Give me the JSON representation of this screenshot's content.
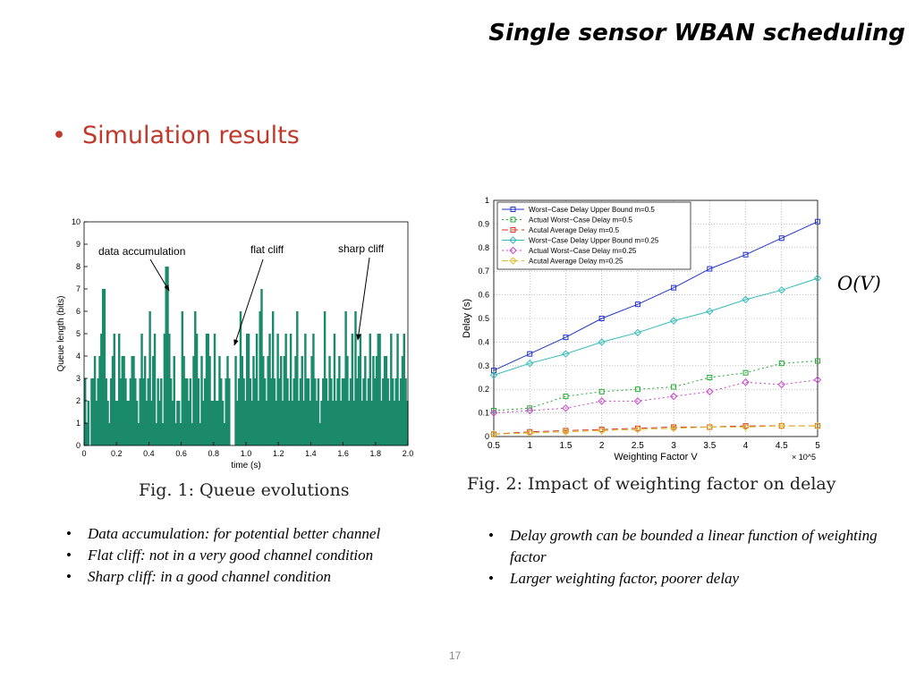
{
  "slide": {
    "title": "Single sensor WBAN scheduling",
    "bullet": "Simulation results",
    "page_number": "17",
    "ov_label": "O(V)",
    "notes_left": [
      "Data accumulation: for potential better channel",
      "Flat cliff: not in a very good channel condition",
      "Sharp cliff: in a good channel condition"
    ],
    "notes_right": [
      "Delay growth can be bounded a linear function of weighting factor",
      "Larger weighting factor, poorer delay"
    ],
    "bullet_color": "#c0392b"
  },
  "chart_data": [
    {
      "type": "bar",
      "caption": "Fig. 1: Queue evolutions",
      "xlabel": "time (s)",
      "ylabel": "Queue length (bits)",
      "xlim": [
        0,
        2.0
      ],
      "ylim": [
        0,
        10
      ],
      "xticks": [
        "0",
        "0.2",
        "0.4",
        "0.6",
        "0.8",
        "1.0",
        "1.2",
        "1.4",
        "1.6",
        "1.8",
        "2.0"
      ],
      "yticks": [
        "0",
        "1",
        "2",
        "3",
        "4",
        "5",
        "6",
        "7",
        "8",
        "9",
        "10"
      ],
      "color": "#1a8a6a",
      "annotations": [
        "data accumulation",
        "flat cliff",
        "sharp cliff"
      ],
      "bar_width": 0.01,
      "values": [
        3,
        1,
        2,
        0,
        3,
        3,
        4,
        2,
        3,
        4,
        5,
        7,
        7,
        3,
        2,
        1,
        3,
        4,
        5,
        2,
        2,
        5,
        3,
        4,
        4,
        3,
        2,
        2,
        3,
        4,
        4,
        3,
        2,
        1,
        3,
        5,
        3,
        4,
        2,
        3,
        6,
        2,
        4,
        5,
        1,
        3,
        2,
        3,
        1,
        5,
        8,
        8,
        5,
        3,
        2,
        4,
        1,
        2,
        2,
        1,
        6,
        4,
        3,
        3,
        2,
        3,
        1,
        4,
        6,
        5,
        3,
        1,
        4,
        2,
        3,
        5,
        5,
        4,
        2,
        2,
        5,
        2,
        2,
        4,
        3,
        2,
        1,
        3,
        4,
        3,
        0,
        0,
        0,
        4,
        2,
        3,
        6,
        4,
        3,
        2,
        5,
        5,
        3,
        2,
        4,
        3,
        5,
        2,
        6,
        7,
        4,
        3,
        2,
        4,
        5,
        3,
        6,
        3,
        2,
        5,
        3,
        4,
        2,
        4,
        5,
        3,
        2,
        5,
        2,
        3,
        4,
        6,
        2,
        3,
        4,
        2,
        5,
        3,
        3,
        2,
        4,
        5,
        3,
        2,
        3,
        1,
        2,
        3,
        6,
        3,
        2,
        4,
        3,
        2,
        5,
        2,
        3,
        4,
        2,
        3,
        3,
        6,
        4,
        2,
        3,
        5,
        2,
        6,
        3,
        4,
        5,
        2,
        3,
        4,
        2,
        3,
        5,
        2,
        4,
        3,
        4,
        5,
        5,
        2,
        3,
        4,
        4,
        3,
        2,
        5,
        3,
        2,
        3,
        5,
        2,
        3,
        4,
        5,
        3,
        2
      ]
    },
    {
      "type": "line",
      "caption": "Fig. 2: Impact of weighting factor on delay",
      "xlabel": "Weighting Factor V",
      "ylabel": "Delay (s)",
      "x_multiplier": "× 10^5",
      "xlim": [
        0.5,
        5
      ],
      "ylim": [
        0,
        1
      ],
      "grid": true,
      "legend_position": "top-left",
      "x": [
        0.5,
        1,
        1.5,
        2,
        2.5,
        3,
        3.5,
        4,
        4.5,
        5
      ],
      "xticks": [
        "0.5",
        "1",
        "1.5",
        "2",
        "2.5",
        "3",
        "3.5",
        "4",
        "4.5",
        "5"
      ],
      "yticks": [
        "0",
        "0.1",
        "0.2",
        "0.3",
        "0.4",
        "0.5",
        "0.6",
        "0.7",
        "0.8",
        "0.9",
        "1"
      ],
      "series": [
        {
          "name": "Worst−Case Delay Upper Bound m=0.5",
          "color": "#2233cc",
          "dash": "",
          "marker": "square",
          "values": [
            0.28,
            0.35,
            0.42,
            0.5,
            0.56,
            0.63,
            0.71,
            0.77,
            0.84,
            0.91
          ]
        },
        {
          "name": "Actual Worst−Case Delay m=0.5",
          "color": "#22aa33",
          "dash": "2,3",
          "marker": "square",
          "values": [
            0.11,
            0.12,
            0.17,
            0.19,
            0.2,
            0.21,
            0.25,
            0.27,
            0.31,
            0.32
          ]
        },
        {
          "name": "Acutal Average Delay m=0.5",
          "color": "#dd3322",
          "dash": "7,4",
          "marker": "square",
          "values": [
            0.01,
            0.02,
            0.025,
            0.03,
            0.035,
            0.04,
            0.04,
            0.045,
            0.045,
            0.045
          ]
        },
        {
          "name": "Worst−Case Delay Upper Bound m=0.25",
          "color": "#33bbbb",
          "dash": "",
          "marker": "diamond",
          "values": [
            0.26,
            0.31,
            0.35,
            0.4,
            0.44,
            0.49,
            0.53,
            0.58,
            0.62,
            0.67
          ]
        },
        {
          "name": "Actual Worst−Case Delay m=0.25",
          "color": "#cc44cc",
          "dash": "2,3",
          "marker": "diamond",
          "values": [
            0.1,
            0.11,
            0.12,
            0.15,
            0.15,
            0.17,
            0.19,
            0.23,
            0.22,
            0.24
          ]
        },
        {
          "name": "Acutal Average Delay m=0.25",
          "color": "#ddbb22",
          "dash": "7,4",
          "marker": "diamond",
          "values": [
            0.01,
            0.015,
            0.02,
            0.025,
            0.03,
            0.035,
            0.04,
            0.04,
            0.045,
            0.045
          ]
        }
      ]
    }
  ]
}
